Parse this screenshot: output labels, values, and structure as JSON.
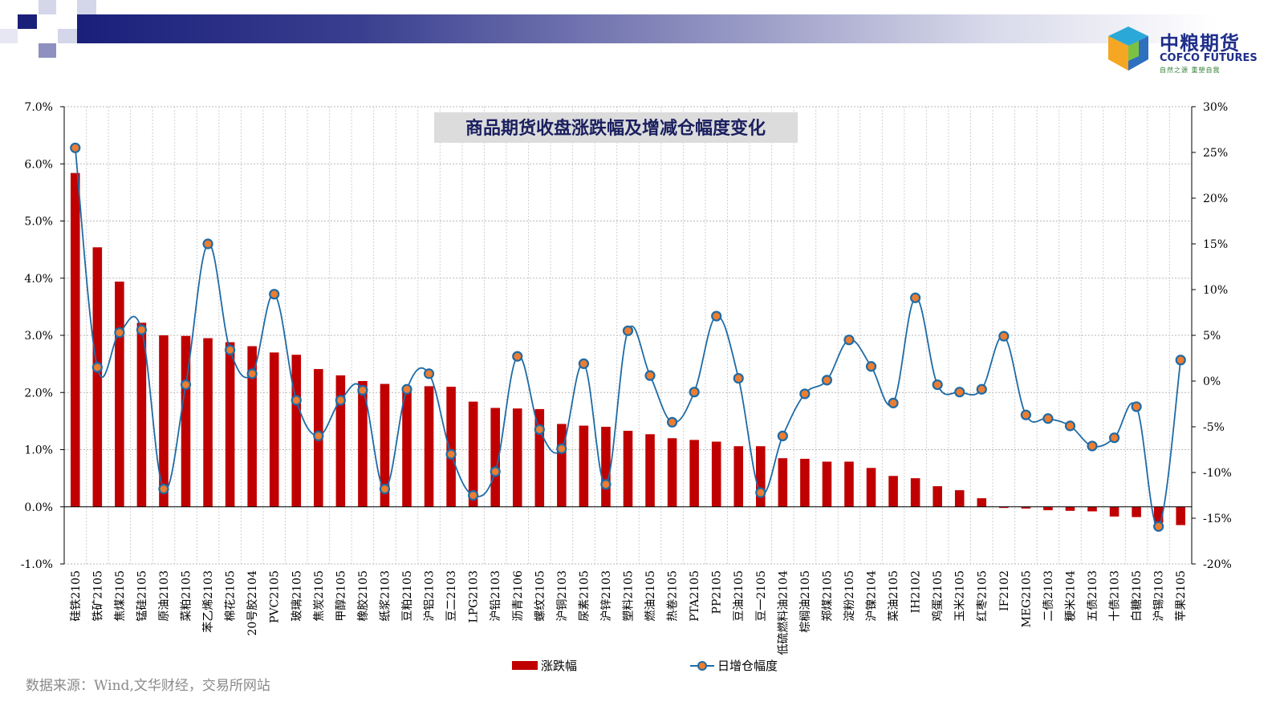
{
  "header": {
    "logo_cn": "中粮期货",
    "logo_en": "COFCO FUTURES",
    "logo_sub": "自然之源 重塑自我"
  },
  "source": "数据来源：Wind,文华财经，交易所网站",
  "colors": {
    "bar": "#c00000",
    "line": "#1f6ba5",
    "marker_fill": "#ed7d31",
    "title_bg": "#dcdcdc"
  },
  "chart_data": {
    "type": "bar",
    "title": "商品期货收盘涨跌幅及增减仓幅度变化",
    "grid": true,
    "legend_position": "bottom",
    "y_left": {
      "min": -1.0,
      "max": 7.0,
      "step": 1.0,
      "format": "percent1"
    },
    "y_right": {
      "min": -20,
      "max": 30,
      "step": 5,
      "format": "percent0"
    },
    "categories": [
      "硅铁2105",
      "铁矿2105",
      "焦煤2105",
      "锰硅2105",
      "原油2103",
      "菜粕2105",
      "苯乙烯2103",
      "棉花2105",
      "20号胶2104",
      "PVC2105",
      "玻璃2105",
      "焦炭2105",
      "甲醇2105",
      "橡胶2105",
      "纸浆2103",
      "豆粕2105",
      "沪铝2103",
      "豆二2103",
      "LPG2103",
      "沪铅2103",
      "沥青2106",
      "螺纹2105",
      "沪铜2103",
      "尿素2105",
      "沪锌2103",
      "塑料2105",
      "燃油2105",
      "热卷2105",
      "PTA2105",
      "PP2105",
      "豆油2105",
      "豆一2105",
      "低硫燃料油2104",
      "棕榈油2105",
      "郑煤2105",
      "淀粉2105",
      "沪镍2104",
      "菜油2105",
      "IH2102",
      "鸡蛋2105",
      "玉米2105",
      "红枣2105",
      "IF2102",
      "MEG2105",
      "二债2103",
      "粳米2104",
      "五债2103",
      "十债2103",
      "白糖2105",
      "沪锡2103",
      "苹果2105"
    ],
    "series": [
      {
        "name": "涨跌幅",
        "type": "bar",
        "axis": "left",
        "values": [
          5.84,
          4.54,
          3.94,
          3.22,
          3.0,
          2.99,
          2.95,
          2.88,
          2.81,
          2.7,
          2.66,
          2.41,
          2.3,
          2.2,
          2.15,
          2.07,
          2.11,
          2.1,
          1.84,
          1.73,
          1.72,
          1.71,
          1.45,
          1.42,
          1.4,
          1.33,
          1.27,
          1.2,
          1.17,
          1.14,
          1.06,
          1.06,
          0.85,
          0.84,
          0.79,
          0.79,
          0.68,
          0.54,
          0.5,
          0.36,
          0.29,
          0.15,
          -0.02,
          -0.03,
          -0.06,
          -0.07,
          -0.08,
          -0.17,
          -0.18,
          -0.28,
          -0.32
        ]
      },
      {
        "name": "日增仓幅度",
        "type": "line",
        "axis": "right",
        "values": [
          25.5,
          1.5,
          5.3,
          5.6,
          -11.8,
          -0.4,
          15.0,
          3.4,
          0.8,
          9.5,
          -2.1,
          -6.0,
          -2.1,
          -1.0,
          -11.8,
          -0.9,
          0.8,
          -8.0,
          -12.5,
          -9.9,
          2.7,
          -5.3,
          -7.4,
          1.9,
          -11.3,
          5.5,
          0.6,
          -4.5,
          -1.2,
          7.1,
          0.3,
          -12.2,
          -6.0,
          -1.4,
          0.1,
          4.5,
          1.6,
          -2.4,
          9.1,
          -0.4,
          -1.2,
          -0.9,
          4.9,
          -3.7,
          -4.1,
          -4.9,
          -7.1,
          -6.2,
          -2.8,
          -15.9,
          2.3
        ]
      }
    ]
  }
}
